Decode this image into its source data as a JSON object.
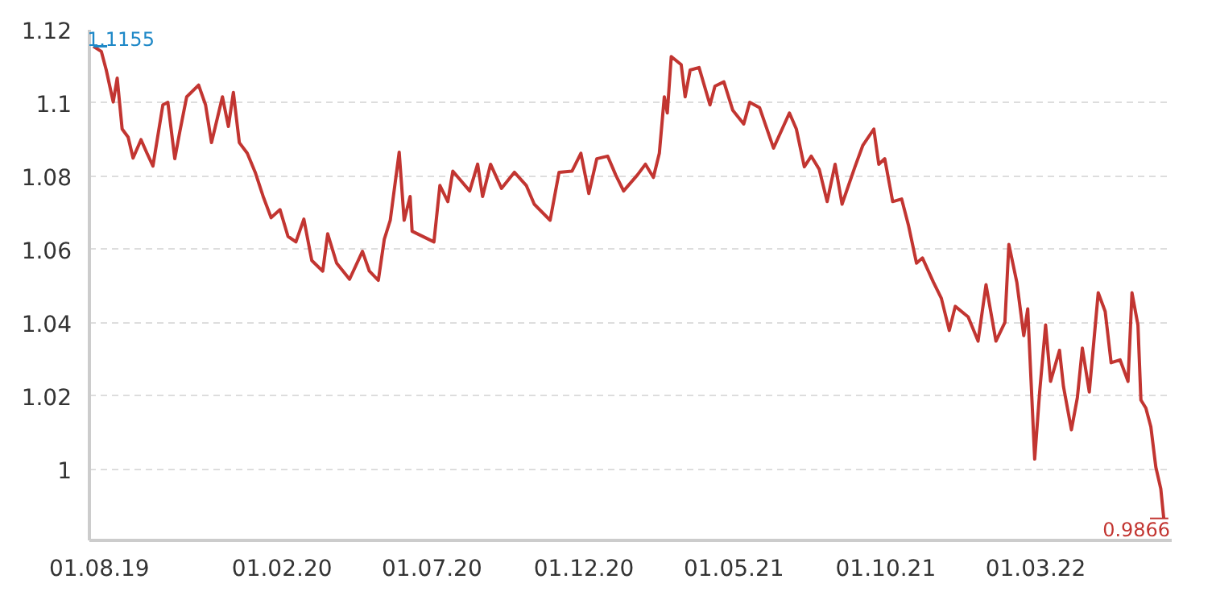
{
  "chart_data": {
    "type": "line",
    "xlim": [
      "2019-07-22",
      "2022-07-16"
    ],
    "ylim": [
      0.9806,
      1.12
    ],
    "yticks": [
      1,
      1.02,
      1.04,
      1.06,
      1.08,
      1.1,
      1.12
    ],
    "xticks": [
      {
        "value": "2019-08-01",
        "label": "01.08.19"
      },
      {
        "value": "2020-02-01",
        "label": "01.02.20"
      },
      {
        "value": "2020-07-01",
        "label": "01.07.20"
      },
      {
        "value": "2020-12-01",
        "label": "01.12.20"
      },
      {
        "value": "2021-05-01",
        "label": "01.05.21"
      },
      {
        "value": "2021-10-01",
        "label": "01.10.21"
      },
      {
        "value": "2022-03-01",
        "label": "01.03.22"
      }
    ],
    "grid": "y",
    "line_style": "solid",
    "marker": "none",
    "annotations": [
      {
        "text": "1.1155",
        "x": "2019-07-26",
        "y": 1.1155
      },
      {
        "text": "0.9866",
        "x": "2022-07-08",
        "y": 0.9866
      }
    ],
    "series": [
      {
        "color": "#c23531",
        "x": [
          "2019-07-26",
          "2019-08-03",
          "2019-08-08",
          "2019-08-15",
          "2019-08-19",
          "2019-08-24",
          "2019-08-30",
          "2019-09-04",
          "2019-09-12",
          "2019-09-18",
          "2019-09-24",
          "2019-10-04",
          "2019-10-09",
          "2019-10-16",
          "2019-10-21",
          "2019-10-28",
          "2019-11-09",
          "2019-11-16",
          "2019-11-22",
          "2019-12-03",
          "2019-12-09",
          "2019-12-14",
          "2019-12-20",
          "2019-12-28",
          "2020-01-05",
          "2020-01-13",
          "2020-01-21",
          "2020-01-30",
          "2020-02-07",
          "2020-02-15",
          "2020-02-23",
          "2020-03-02",
          "2020-03-13",
          "2020-03-18",
          "2020-03-27",
          "2020-04-09",
          "2020-04-22",
          "2020-04-29",
          "2020-05-08",
          "2020-05-14",
          "2020-05-20",
          "2020-05-29",
          "2020-06-03",
          "2020-06-09",
          "2020-06-11",
          "2020-07-03",
          "2020-07-09",
          "2020-07-17",
          "2020-07-22",
          "2020-08-08",
          "2020-08-16",
          "2020-08-21",
          "2020-08-29",
          "2020-09-09",
          "2020-09-22",
          "2020-10-04",
          "2020-10-12",
          "2020-10-28",
          "2020-11-06",
          "2020-11-19",
          "2020-11-28",
          "2020-12-06",
          "2020-12-14",
          "2020-12-25",
          "2021-01-02",
          "2021-01-10",
          "2021-01-24",
          "2021-02-01",
          "2021-02-09",
          "2021-02-15",
          "2021-02-20",
          "2021-02-23",
          "2021-02-27",
          "2021-03-09",
          "2021-03-13",
          "2021-03-18",
          "2021-03-27",
          "2021-04-07",
          "2021-04-12",
          "2021-04-21",
          "2021-04-30",
          "2021-05-11",
          "2021-05-17",
          "2021-05-27",
          "2021-06-10",
          "2021-06-26",
          "2021-07-03",
          "2021-07-11",
          "2021-07-18",
          "2021-07-26",
          "2021-08-03",
          "2021-08-11",
          "2021-08-18",
          "2021-08-31",
          "2021-09-08",
          "2021-09-19",
          "2021-09-24",
          "2021-09-30",
          "2021-10-08",
          "2021-10-17",
          "2021-10-24",
          "2021-11-01",
          "2021-11-07",
          "2021-11-18",
          "2021-11-26",
          "2021-12-04",
          "2021-12-10",
          "2021-12-23",
          "2022-01-02",
          "2022-01-10",
          "2022-01-20",
          "2022-01-29",
          "2022-02-02",
          "2022-02-10",
          "2022-02-17",
          "2022-02-21",
          "2022-02-28",
          "2022-03-05",
          "2022-03-11",
          "2022-03-16",
          "2022-03-25",
          "2022-03-29",
          "2022-04-06",
          "2022-04-12",
          "2022-04-17",
          "2022-04-24",
          "2022-05-03",
          "2022-05-10",
          "2022-05-16",
          "2022-05-25",
          "2022-06-02",
          "2022-06-06",
          "2022-06-12",
          "2022-06-15",
          "2022-06-20",
          "2022-06-25",
          "2022-06-30",
          "2022-07-05",
          "2022-07-08"
        ],
        "values": [
          1.1155,
          1.1141,
          1.109,
          1.1003,
          1.1068,
          1.0929,
          1.0907,
          1.085,
          1.09,
          1.0863,
          1.0828,
          1.0995,
          1.1002,
          1.0848,
          1.0921,
          1.1017,
          1.1049,
          1.0995,
          1.0892,
          1.1017,
          1.0936,
          1.1029,
          1.0892,
          1.0863,
          1.0811,
          1.0745,
          1.0687,
          1.0709,
          1.0636,
          1.0621,
          1.0683,
          1.057,
          1.0541,
          1.0643,
          1.0563,
          1.0519,
          1.0595,
          1.0541,
          1.0516,
          1.0628,
          1.068,
          1.0866,
          1.068,
          1.0745,
          1.065,
          1.0621,
          1.0775,
          1.0731,
          1.0814,
          1.076,
          1.0833,
          1.0745,
          1.0833,
          1.0767,
          1.0811,
          1.0775,
          1.0724,
          1.068,
          1.0811,
          1.0814,
          1.0863,
          1.0753,
          1.0848,
          1.0855,
          1.0804,
          1.076,
          1.0804,
          1.0833,
          1.0797,
          1.0863,
          1.1017,
          1.0973,
          1.1127,
          1.1105,
          1.1017,
          1.109,
          1.1097,
          1.0995,
          1.1046,
          1.1058,
          1.098,
          1.0943,
          1.1002,
          1.0987,
          1.0877,
          1.0973,
          1.0929,
          1.0826,
          1.0855,
          1.0819,
          1.0731,
          1.0833,
          1.0724,
          1.0826,
          1.0885,
          1.0929,
          1.0833,
          1.0848,
          1.0731,
          1.0738,
          1.0665,
          1.0563,
          1.0577,
          1.0511,
          1.0467,
          1.0379,
          1.0445,
          1.0416,
          1.035,
          1.0504,
          1.035,
          1.0401,
          1.0614,
          1.0511,
          1.0365,
          1.0438,
          1.0028,
          1.0211,
          1.0394,
          1.024,
          1.0325,
          1.0226,
          1.0108,
          1.0196,
          1.0331,
          1.0211,
          1.0482,
          1.0431,
          1.0291,
          1.0299,
          1.024,
          1.0482,
          1.0394,
          1.0189,
          1.0167,
          1.0116,
          1.0006,
          0.9947,
          0.9866
        ]
      }
    ]
  }
}
